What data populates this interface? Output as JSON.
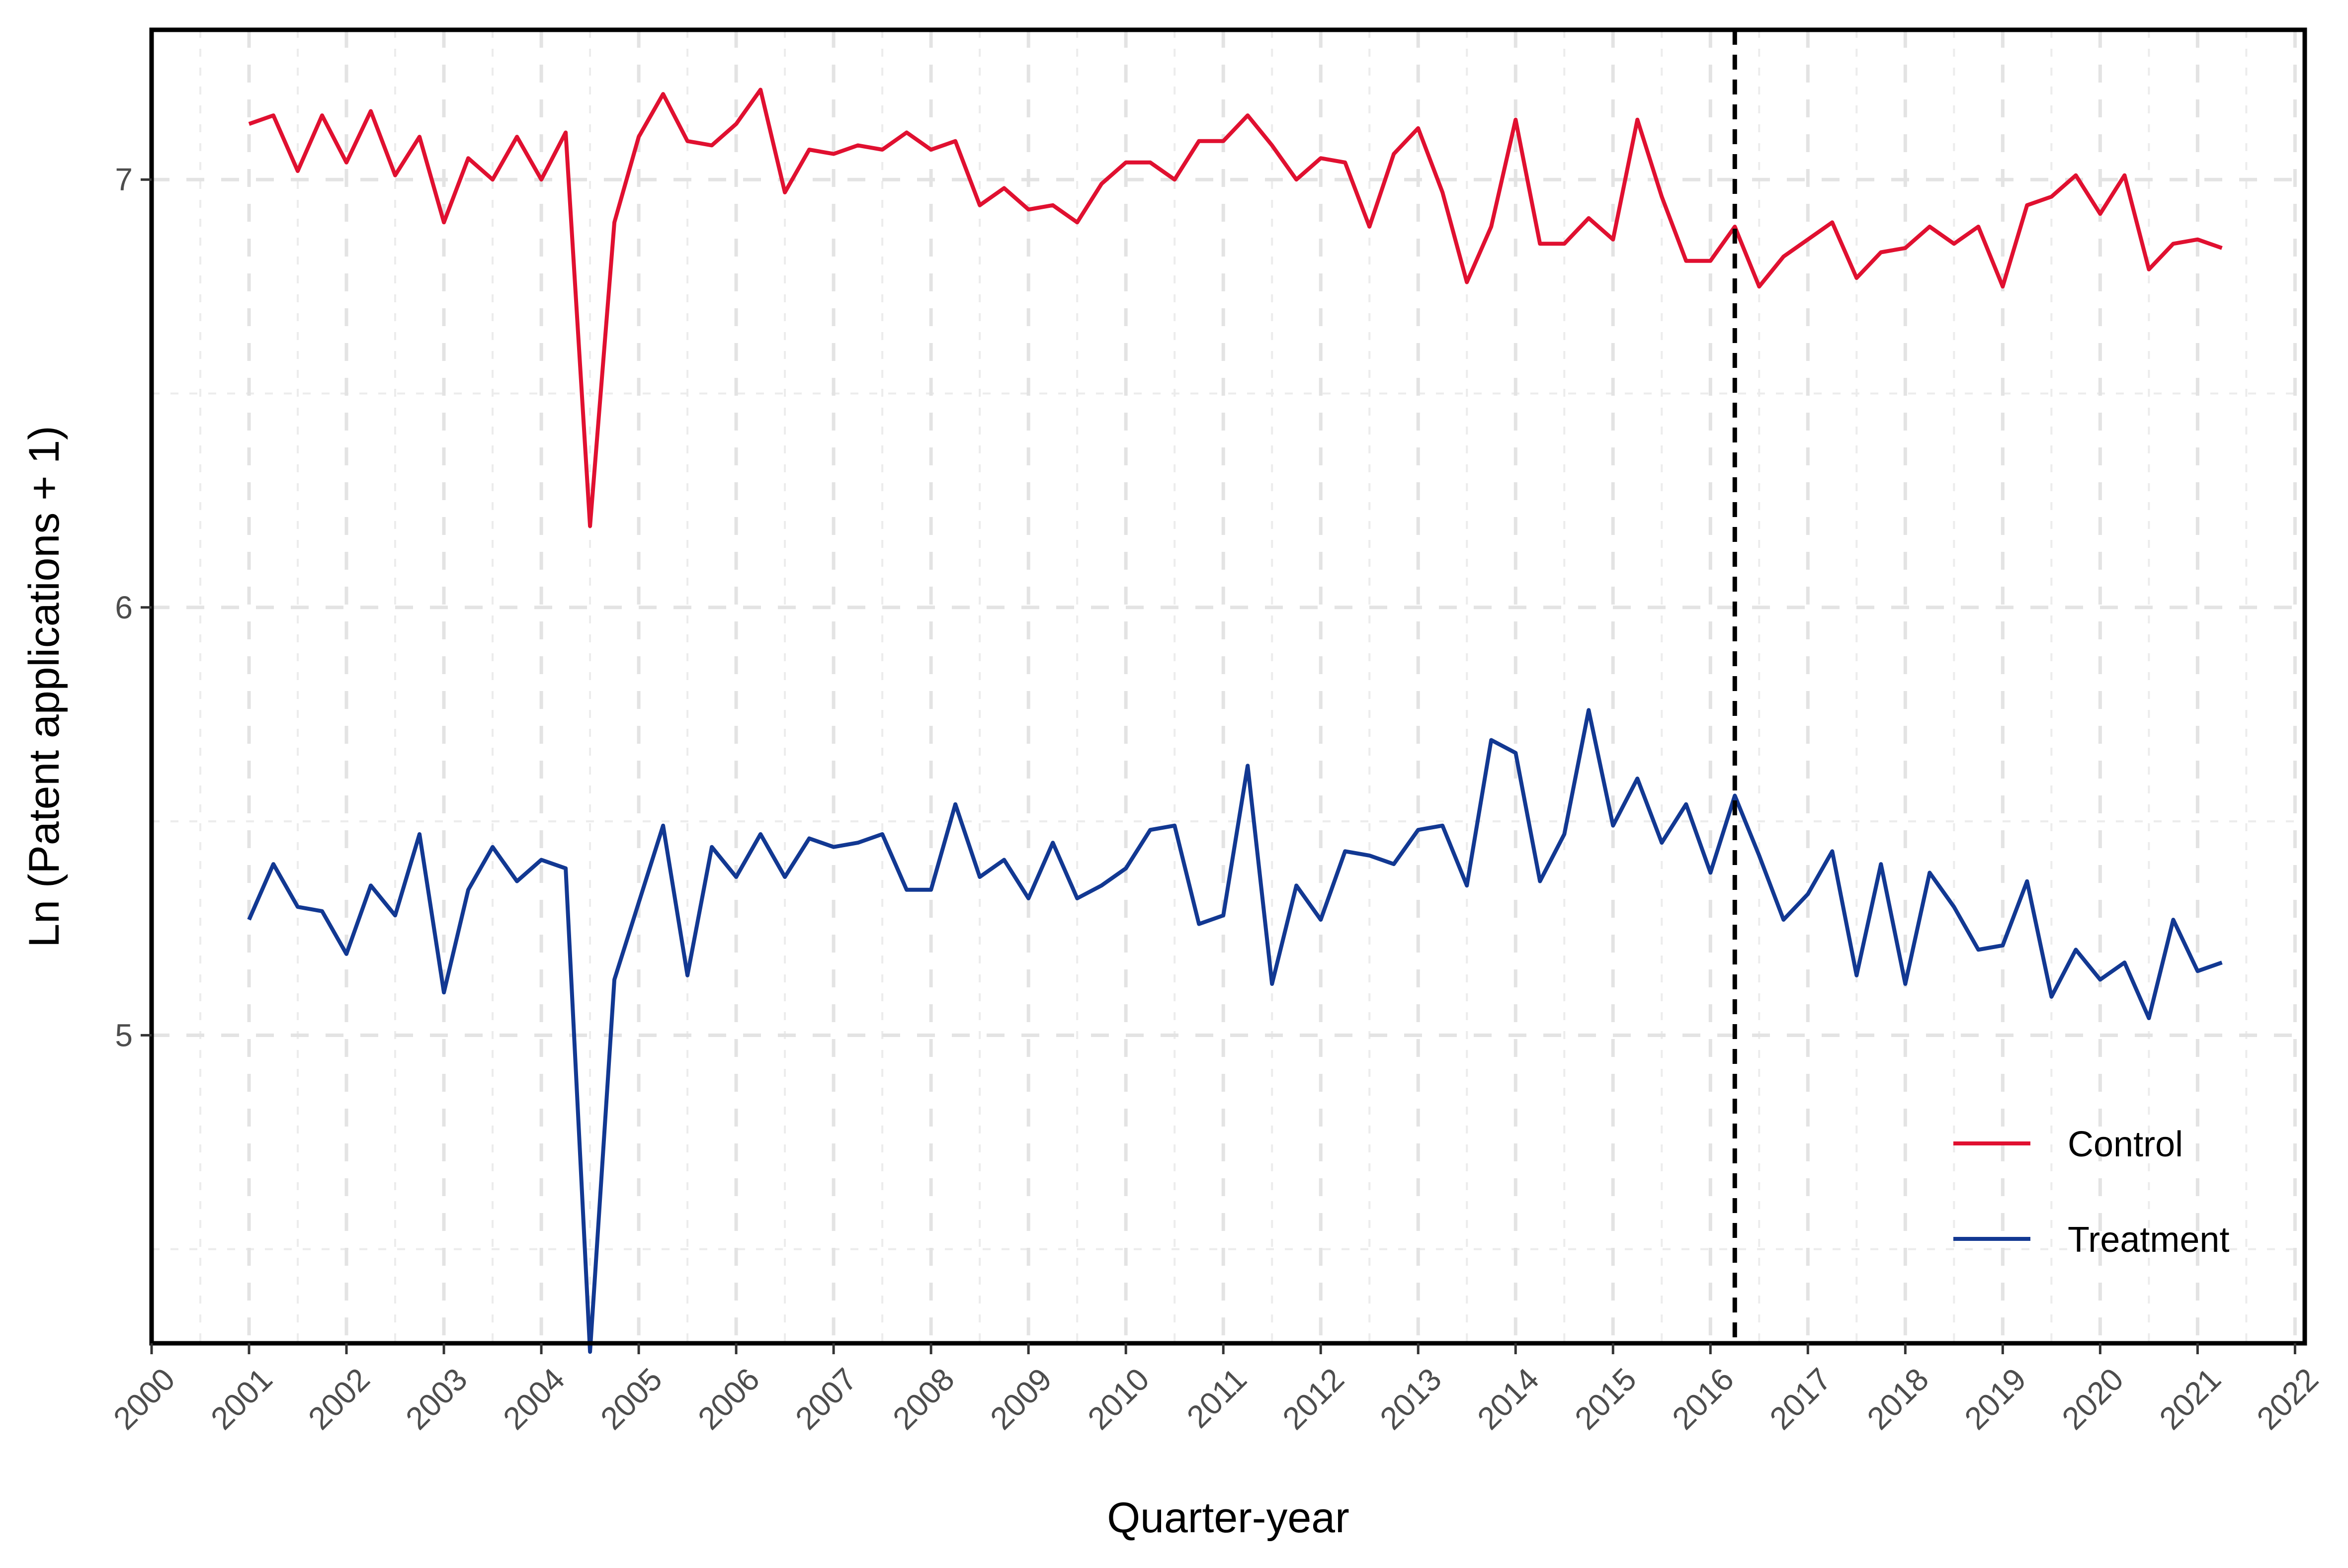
{
  "chart_data": {
    "type": "line",
    "title": "",
    "xlabel": "Quarter-year",
    "ylabel": "Ln (Patent applications + 1)",
    "xlim": [
      2000.0,
      2022.1
    ],
    "ylim": [
      4.28,
      7.35
    ],
    "x_tick_labels": [
      "2000",
      "2001",
      "2002",
      "2003",
      "2004",
      "2005",
      "2006",
      "2007",
      "2008",
      "2009",
      "2010",
      "2011",
      "2012",
      "2013",
      "2014",
      "2015",
      "2016",
      "2017",
      "2018",
      "2019",
      "2020",
      "2021",
      "2022"
    ],
    "y_tick_labels": [
      "5",
      "6",
      "7"
    ],
    "y_ticks": [
      5,
      6,
      7
    ],
    "y_minor_ticks": [
      4.5,
      5.5,
      6.5
    ],
    "grid": true,
    "reference_line": {
      "x": 2016.25,
      "style": "dashed",
      "color": "#000000"
    },
    "legend": {
      "position": "bottom-right",
      "entries": [
        "Control",
        "Treatment"
      ]
    },
    "x": [
      2001.0,
      2001.25,
      2001.5,
      2001.75,
      2002.0,
      2002.25,
      2002.5,
      2002.75,
      2003.0,
      2003.25,
      2003.5,
      2003.75,
      2004.0,
      2004.25,
      2004.5,
      2004.75,
      2005.0,
      2005.25,
      2005.5,
      2005.75,
      2006.0,
      2006.25,
      2006.5,
      2006.75,
      2007.0,
      2007.25,
      2007.5,
      2007.75,
      2008.0,
      2008.25,
      2008.5,
      2008.75,
      2009.0,
      2009.25,
      2009.5,
      2009.75,
      2010.0,
      2010.25,
      2010.5,
      2010.75,
      2011.0,
      2011.25,
      2011.5,
      2011.75,
      2012.0,
      2012.25,
      2012.5,
      2012.75,
      2013.0,
      2013.25,
      2013.5,
      2013.75,
      2014.0,
      2014.25,
      2014.5,
      2014.75,
      2015.0,
      2015.25,
      2015.5,
      2015.75,
      2016.0,
      2016.25,
      2016.5,
      2016.75,
      2017.0,
      2017.25,
      2017.5,
      2017.75,
      2018.0,
      2018.25,
      2018.5,
      2018.75,
      2019.0,
      2019.25,
      2019.5,
      2019.75,
      2020.0,
      2020.25,
      2020.5,
      2020.75,
      2021.0,
      2021.25
    ],
    "series": [
      {
        "name": "Control",
        "color": "#e01030",
        "values": [
          7.13,
          7.15,
          7.02,
          7.15,
          7.04,
          7.16,
          7.01,
          7.1,
          6.9,
          7.05,
          7.0,
          7.1,
          7.0,
          7.11,
          6.19,
          6.9,
          7.1,
          7.2,
          7.09,
          7.08,
          7.13,
          7.21,
          6.97,
          7.07,
          7.06,
          7.08,
          7.07,
          7.11,
          7.07,
          7.09,
          6.94,
          6.98,
          6.93,
          6.94,
          6.9,
          6.99,
          7.04,
          7.04,
          7.0,
          7.09,
          7.09,
          7.15,
          7.08,
          7.0,
          7.05,
          7.04,
          6.89,
          7.06,
          7.12,
          6.97,
          6.76,
          6.89,
          7.14,
          6.85,
          6.85,
          6.91,
          6.86,
          7.14,
          6.96,
          6.81,
          6.81,
          6.89,
          6.75,
          6.82,
          6.86,
          6.9,
          6.77,
          6.83,
          6.84,
          6.89,
          6.85,
          6.89,
          6.75,
          6.94,
          6.96,
          7.01,
          6.92,
          7.01,
          6.79,
          6.85,
          6.86,
          6.84
        ]
      },
      {
        "name": "Treatment",
        "color": "#123892",
        "values": [
          5.27,
          5.4,
          5.3,
          5.29,
          5.19,
          5.35,
          5.28,
          5.47,
          5.1,
          5.34,
          5.44,
          5.36,
          5.41,
          5.39,
          4.26,
          5.13,
          5.31,
          5.49,
          5.14,
          5.44,
          5.37,
          5.47,
          5.37,
          5.46,
          5.44,
          5.45,
          5.47,
          5.34,
          5.34,
          5.54,
          5.37,
          5.41,
          5.32,
          5.45,
          5.32,
          5.35,
          5.39,
          5.48,
          5.49,
          5.26,
          5.28,
          5.63,
          5.12,
          5.35,
          5.27,
          5.43,
          5.42,
          5.4,
          5.48,
          5.49,
          5.35,
          5.69,
          5.66,
          5.36,
          5.47,
          5.76,
          5.49,
          5.6,
          5.45,
          5.54,
          5.38,
          5.56,
          5.42,
          5.27,
          5.33,
          5.43,
          5.14,
          5.4,
          5.12,
          5.38,
          5.3,
          5.2,
          5.21,
          5.36,
          5.09,
          5.2,
          5.13,
          5.17,
          5.04,
          5.27,
          5.15,
          5.17
        ]
      }
    ]
  }
}
